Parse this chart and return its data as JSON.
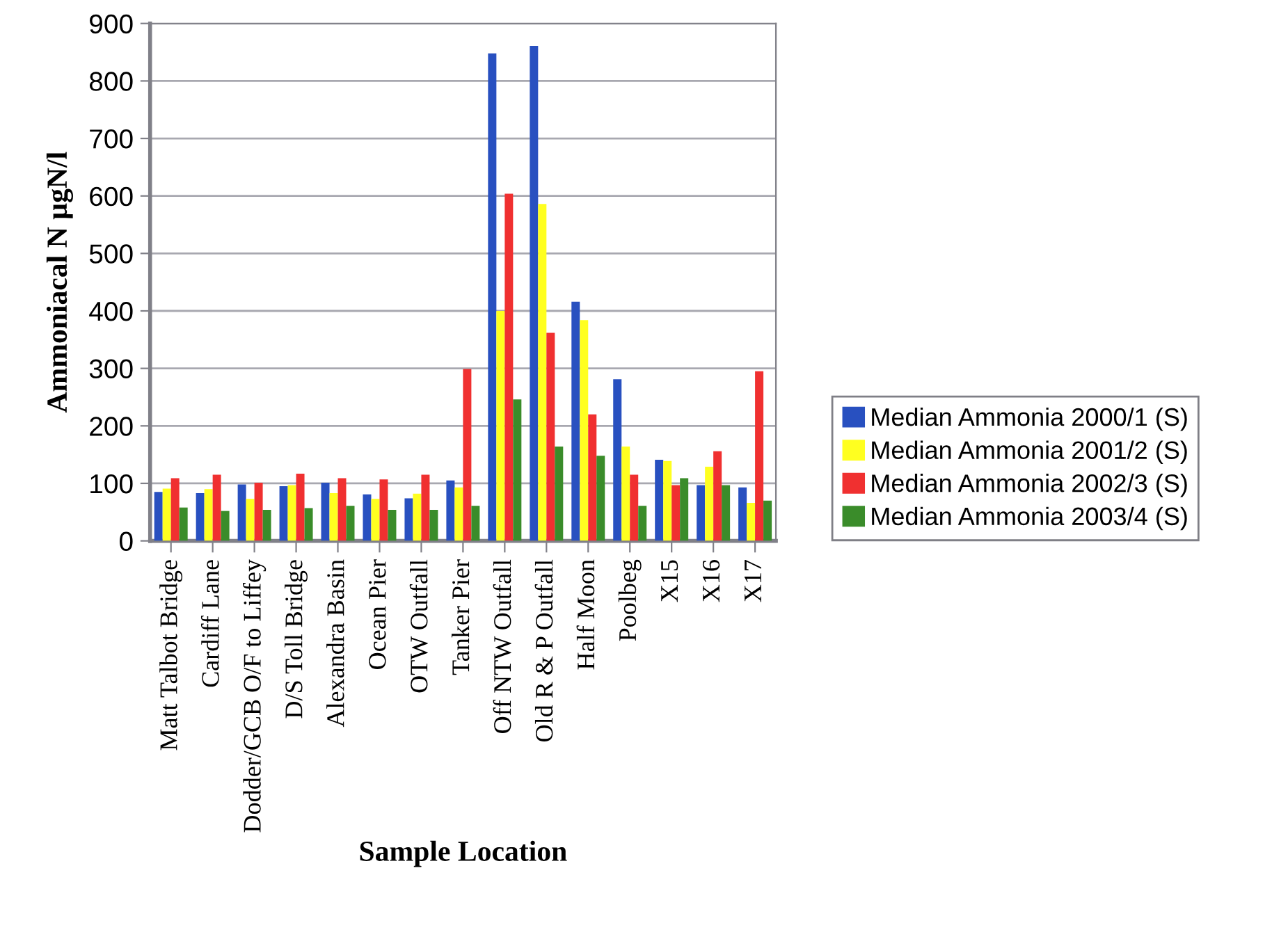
{
  "chart_data": {
    "type": "bar",
    "xlabel": "Sample Location",
    "ylabel": "Ammoniacal N µgN/l",
    "categories": [
      "Matt Talbot Bridge",
      "Cardiff Lane",
      "Dodder/GCB O/F to Liffey",
      "D/S Toll Bridge",
      "Alexandra Basin",
      "Ocean Pier",
      "OTW Outfall",
      "Tanker Pier",
      "Off NTW Outfall",
      "Old R & P Outfall",
      "Half Moon",
      "Poolbeg",
      "X15",
      "X16",
      "X17"
    ],
    "series": [
      {
        "name": "Median Ammonia 2000/1 (S)",
        "color": "#2850c0",
        "values": [
          85,
          83,
          98,
          95,
          101,
          81,
          74,
          105,
          848,
          861,
          416,
          281,
          141,
          97,
          93
        ]
      },
      {
        "name": "Median Ammonia 2001/2 (S)",
        "color": "#ffff20",
        "values": [
          91,
          90,
          73,
          97,
          83,
          73,
          82,
          93,
          400,
          586,
          384,
          164,
          139,
          129,
          66
        ]
      },
      {
        "name": "Median Ammonia 2002/3 (S)",
        "color": "#f03030",
        "values": [
          109,
          115,
          101,
          117,
          109,
          107,
          115,
          299,
          604,
          362,
          220,
          115,
          97,
          156,
          295
        ]
      },
      {
        "name": "Median Ammonia 2003/4 (S)",
        "color": "#3a8c2a",
        "values": [
          58,
          52,
          54,
          57,
          61,
          54,
          54,
          61,
          246,
          164,
          148,
          61,
          109,
          97,
          70
        ]
      }
    ],
    "ylim": [
      0,
      900
    ],
    "yticks": [
      0,
      100,
      200,
      300,
      400,
      500,
      600,
      700,
      800,
      900
    ],
    "grid": "y",
    "legend": "right"
  }
}
